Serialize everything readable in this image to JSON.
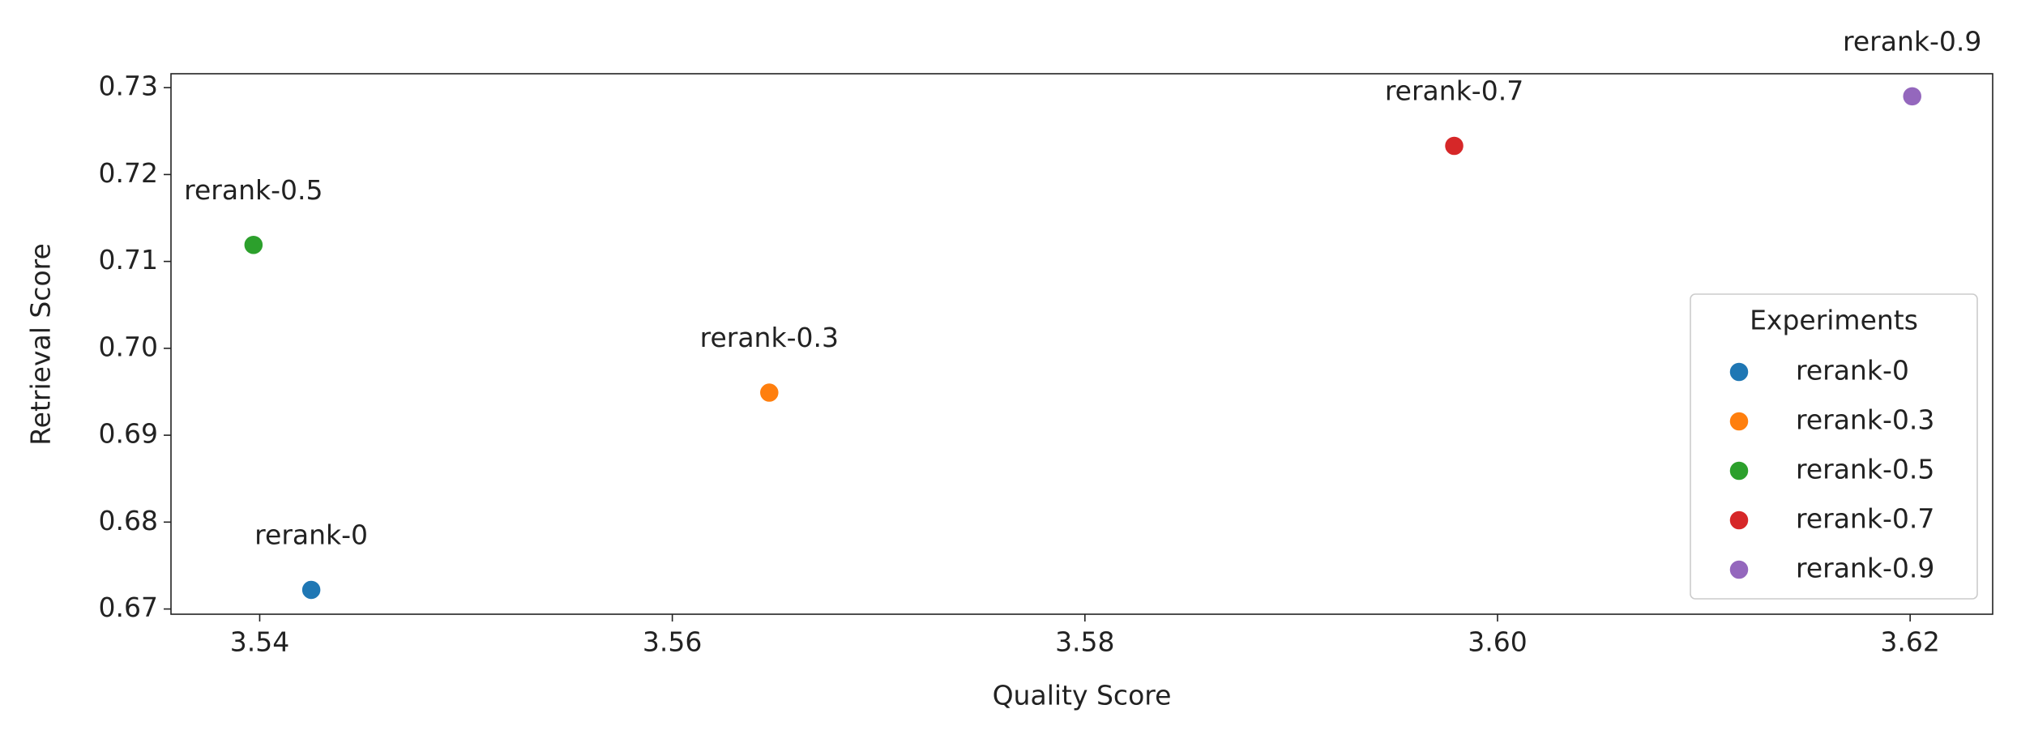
{
  "chart_data": {
    "type": "scatter",
    "xlabel": "Quality Score",
    "ylabel": "Retrieval Score",
    "xlim": [
      3.5357,
      3.624
    ],
    "ylim": [
      0.6694,
      0.7316
    ],
    "xticks": [
      3.54,
      3.56,
      3.58,
      {
        "value": 3.6,
        "label": "3.60"
      },
      3.62
    ],
    "yticks": [
      0.67,
      0.68,
      0.69,
      {
        "value": 0.7,
        "label": "0.70"
      },
      0.71,
      0.72,
      0.73
    ],
    "legend_title": "Experiments",
    "legend_loc": "lower right",
    "series": [
      {
        "name": "rerank-0",
        "color": "#1f77b4",
        "x": [
          3.5425
        ],
        "values": [
          0.6722
        ]
      },
      {
        "name": "rerank-0.3",
        "color": "#ff7f0e",
        "x": [
          3.5647
        ],
        "values": [
          0.6949
        ]
      },
      {
        "name": "rerank-0.5",
        "color": "#2ca02c",
        "x": [
          3.5397
        ],
        "values": [
          0.7119
        ]
      },
      {
        "name": "rerank-0.7",
        "color": "#d62728",
        "x": [
          3.5979
        ],
        "values": [
          0.7233
        ]
      },
      {
        "name": "rerank-0.9",
        "color": "#9467bd",
        "x": [
          3.6201
        ],
        "values": [
          0.729
        ]
      }
    ]
  }
}
